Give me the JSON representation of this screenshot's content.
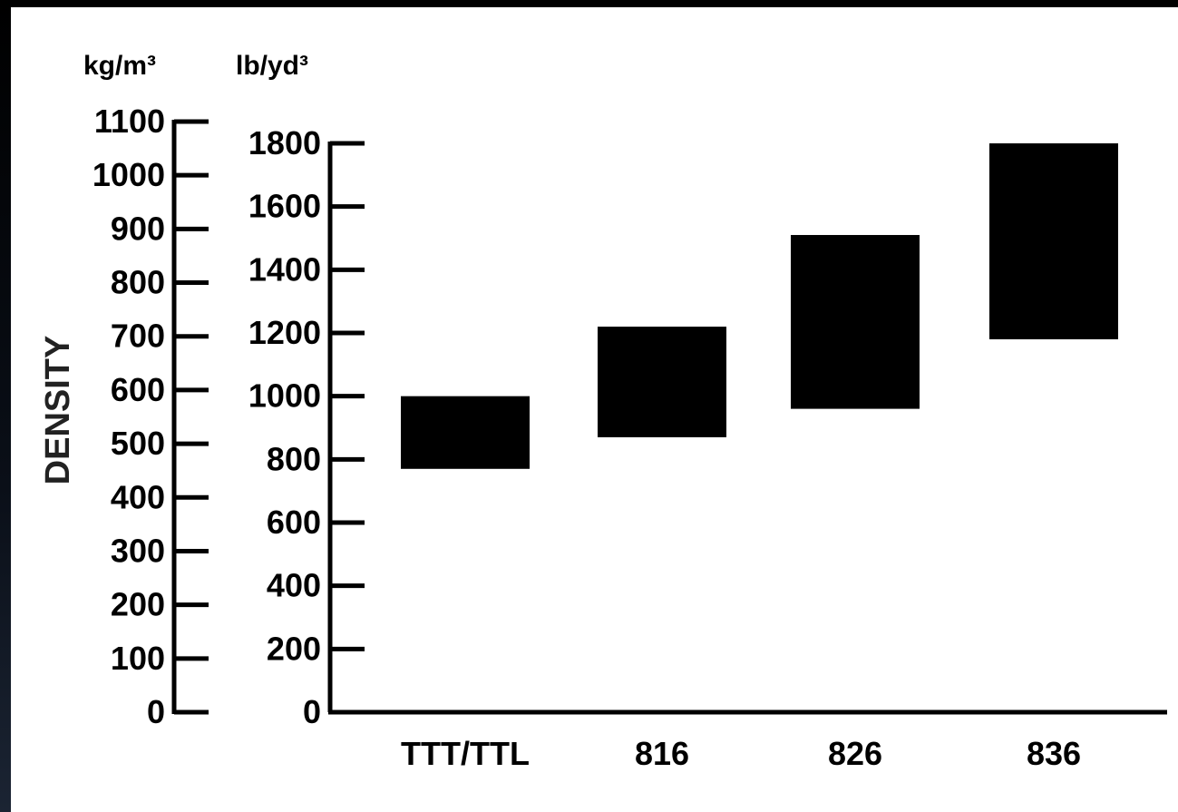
{
  "chart_data": {
    "type": "bar",
    "subtype": "floating-range",
    "ylabel": "DENSITY",
    "units": {
      "metric": "kg/m³",
      "imperial": "lb/yd³"
    },
    "axes": {
      "metric": {
        "unit": "kg/m³",
        "ylim": [
          0,
          1100
        ],
        "ticks": [
          "0",
          "100",
          "200",
          "300",
          "400",
          "500",
          "600",
          "700",
          "800",
          "900",
          "1000",
          "1100"
        ]
      },
      "imperial": {
        "unit": "lb/yd³",
        "ylim": [
          0,
          1800
        ],
        "ticks": [
          "0",
          "200",
          "400",
          "600",
          "800",
          "1000",
          "1200",
          "1400",
          "1600",
          "1800"
        ]
      }
    },
    "categories": [
      "TTT/TTL",
      "816",
      "826",
      "836"
    ],
    "ranges_lb_yd3": [
      {
        "category": "TTT/TTL",
        "low": 770,
        "high": 1000
      },
      {
        "category": "816",
        "low": 870,
        "high": 1220
      },
      {
        "category": "826",
        "low": 960,
        "high": 1510
      },
      {
        "category": "836",
        "low": 1180,
        "high": 1800
      }
    ],
    "grid": false,
    "colors": {
      "bar": "#000000",
      "axis": "#000000",
      "background": "#ffffff"
    }
  }
}
